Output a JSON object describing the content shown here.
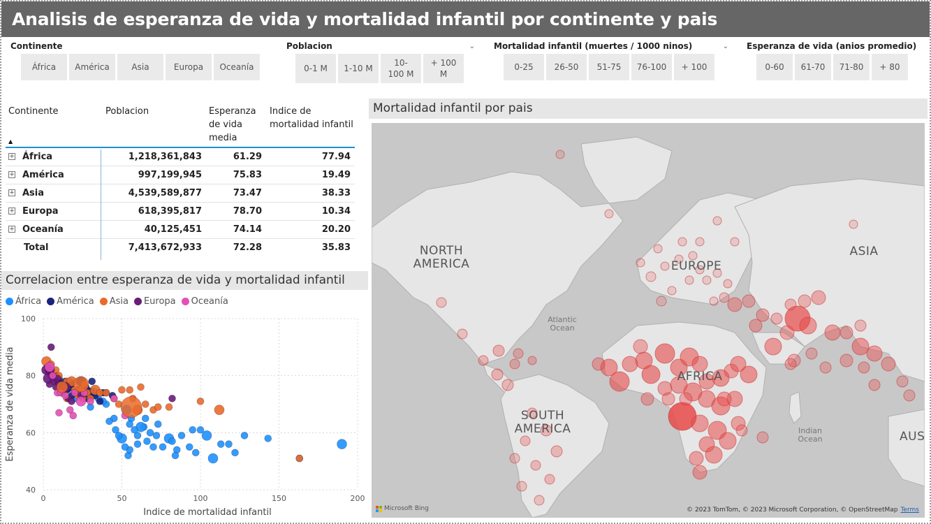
{
  "title": "Analisis de esperanza de vida y mortalidad infantil por continente y pais",
  "slicers": {
    "continente": {
      "label": "Continente",
      "options": [
        "África",
        "América",
        "Asia",
        "Europa",
        "Oceanía"
      ]
    },
    "poblacion": {
      "label": "Poblacion",
      "options": [
        "0-1 M",
        "1-10 M",
        "10-100 M",
        "+ 100 M"
      ]
    },
    "mortalidad": {
      "label": "Mortalidad infantil (muertes / 1000 ninos)",
      "options": [
        "0-25",
        "26-50",
        "51-75",
        "76-100",
        "+ 100"
      ]
    },
    "esperanza": {
      "label": "Esperanza de vida (anios promedio)",
      "options": [
        "0-60",
        "61-70",
        "71-80",
        "+ 80"
      ]
    }
  },
  "matrix": {
    "headers": [
      "Continente",
      "Poblacion",
      "Esperanza de vida media",
      "Indice de mortalidad infantil"
    ],
    "rows": [
      {
        "continente": "África",
        "poblacion": "1,218,361,843",
        "esperanza": "61.29",
        "mortalidad": "77.94"
      },
      {
        "continente": "América",
        "poblacion": "997,199,945",
        "esperanza": "75.83",
        "mortalidad": "19.49"
      },
      {
        "continente": "Asia",
        "poblacion": "4,539,589,877",
        "esperanza": "73.47",
        "mortalidad": "38.33"
      },
      {
        "continente": "Europa",
        "poblacion": "618,395,817",
        "esperanza": "78.70",
        "mortalidad": "10.34"
      },
      {
        "continente": "Oceanía",
        "poblacion": "40,125,451",
        "esperanza": "74.14",
        "mortalidad": "20.20"
      }
    ],
    "total": {
      "label": "Total",
      "poblacion": "7,413,672,933",
      "esperanza": "72.28",
      "mortalidad": "35.83"
    }
  },
  "scatter_title": "Correlacion entre esperanza de vida y mortalidad infantil",
  "map_title": "Mortalidad infantil por pais",
  "map": {
    "continent_labels": [
      "NORTH AMERICA",
      "EUROPE",
      "ASIA",
      "AFRICA",
      "SOUTH AMERICA",
      "AUS"
    ],
    "ocean_labels": [
      "Atlantic Ocean",
      "Indian Ocean"
    ],
    "attribution": "© 2023 TomTom, © 2023 Microsoft Corporation, © OpenStreetMap",
    "terms": "Terms",
    "bing": "Microsoft Bing"
  },
  "colors": {
    "África": "#1e90ff",
    "América": "#1a237e",
    "Asia": "#ea6a2b",
    "Europa": "#6a1b7a",
    "Oceanía": "#e44fb5",
    "title_bg": "#666666",
    "map_bubble": "#e84a4a"
  },
  "chart_data": {
    "type": "scatter",
    "title": "Correlacion entre esperanza de vida y mortalidad infantil",
    "xlabel": "Indice de mortalidad infantil",
    "ylabel": "Esperanza de vida media",
    "xlim": [
      0,
      200
    ],
    "ylim": [
      40,
      100
    ],
    "xticks": [
      0,
      50,
      100,
      150,
      200
    ],
    "yticks": [
      40,
      60,
      80,
      100
    ],
    "legend": "top-left",
    "series": [
      {
        "name": "África",
        "points": [
          [
            190,
            56
          ],
          [
            143,
            58
          ],
          [
            163,
            51
          ],
          [
            128,
            59
          ],
          [
            118,
            56
          ],
          [
            122,
            53
          ],
          [
            113,
            56
          ],
          [
            104,
            59
          ],
          [
            100,
            61
          ],
          [
            95,
            61
          ],
          [
            93,
            55
          ],
          [
            88,
            59
          ],
          [
            85,
            54
          ],
          [
            84,
            52
          ],
          [
            80,
            58
          ],
          [
            76,
            55
          ],
          [
            72,
            59
          ],
          [
            70,
            55
          ],
          [
            68,
            60
          ],
          [
            66,
            57
          ],
          [
            64,
            62
          ],
          [
            62,
            62
          ],
          [
            60,
            59
          ],
          [
            58,
            61
          ],
          [
            56,
            65
          ],
          [
            54,
            52
          ],
          [
            55,
            54
          ],
          [
            52,
            55
          ],
          [
            50,
            58
          ],
          [
            48,
            59
          ],
          [
            45,
            65
          ],
          [
            42,
            64
          ],
          [
            40,
            70
          ],
          [
            38,
            71
          ],
          [
            35,
            72
          ],
          [
            32,
            74
          ],
          [
            30,
            73
          ],
          [
            28,
            75
          ],
          [
            25,
            76
          ],
          [
            22,
            75
          ],
          [
            20,
            72
          ],
          [
            17,
            78
          ],
          [
            108,
            51
          ],
          [
            97,
            53
          ],
          [
            73,
            63
          ],
          [
            60,
            56
          ],
          [
            82,
            57
          ],
          [
            46,
            61
          ],
          [
            30,
            69
          ],
          [
            53,
            68
          ],
          [
            65,
            65
          ],
          [
            55,
            63
          ]
        ]
      },
      {
        "name": "América",
        "points": [
          [
            4,
            82
          ],
          [
            6,
            80
          ],
          [
            8,
            80
          ],
          [
            10,
            79
          ],
          [
            12,
            77
          ],
          [
            14,
            78
          ],
          [
            15,
            75
          ],
          [
            16,
            76
          ],
          [
            18,
            77
          ],
          [
            20,
            74
          ],
          [
            22,
            75
          ],
          [
            25,
            73
          ],
          [
            27,
            76
          ],
          [
            28,
            72
          ],
          [
            30,
            74
          ],
          [
            33,
            73
          ],
          [
            36,
            71
          ],
          [
            40,
            74
          ],
          [
            9,
            78
          ],
          [
            12,
            74
          ],
          [
            18,
            73
          ],
          [
            24,
            78
          ],
          [
            31,
            78
          ],
          [
            38,
            74
          ],
          [
            44,
            73
          ]
        ]
      },
      {
        "name": "Asia",
        "points": [
          [
            2,
            85
          ],
          [
            3,
            83
          ],
          [
            5,
            84
          ],
          [
            8,
            82
          ],
          [
            10,
            80
          ],
          [
            12,
            76
          ],
          [
            15,
            78
          ],
          [
            18,
            78
          ],
          [
            20,
            75
          ],
          [
            22,
            73
          ],
          [
            24,
            75
          ],
          [
            26,
            77
          ],
          [
            28,
            74
          ],
          [
            30,
            72
          ],
          [
            33,
            75
          ],
          [
            36,
            74
          ],
          [
            40,
            74
          ],
          [
            45,
            72
          ],
          [
            50,
            75
          ],
          [
            55,
            75
          ],
          [
            57,
            72
          ],
          [
            60,
            68
          ],
          [
            62,
            76
          ],
          [
            65,
            70
          ],
          [
            70,
            68
          ],
          [
            73,
            69
          ],
          [
            80,
            69
          ],
          [
            100,
            71
          ],
          [
            112,
            68
          ],
          [
            163,
            51
          ],
          [
            25,
            72
          ],
          [
            15,
            72
          ],
          [
            48,
            70
          ]
        ]
      },
      {
        "name": "Europa",
        "points": [
          [
            2,
            82
          ],
          [
            3,
            83
          ],
          [
            4,
            81
          ],
          [
            5,
            80
          ],
          [
            5,
            82
          ],
          [
            6,
            79
          ],
          [
            4,
            77
          ],
          [
            3,
            79
          ],
          [
            7,
            78
          ],
          [
            8,
            76
          ],
          [
            9,
            79
          ],
          [
            10,
            77
          ],
          [
            11,
            75
          ],
          [
            12,
            74
          ],
          [
            14,
            76
          ],
          [
            16,
            72
          ],
          [
            18,
            71
          ],
          [
            5,
            90
          ],
          [
            24,
            73
          ],
          [
            82,
            72
          ]
        ]
      },
      {
        "name": "Oceanía",
        "points": [
          [
            4,
            83
          ],
          [
            6,
            80
          ],
          [
            9,
            74
          ],
          [
            11,
            74
          ],
          [
            14,
            73
          ],
          [
            17,
            68
          ],
          [
            20,
            74
          ],
          [
            24,
            71
          ],
          [
            26,
            74
          ],
          [
            30,
            71
          ],
          [
            45,
            72
          ],
          [
            52,
            66
          ],
          [
            19,
            66
          ],
          [
            10,
            67
          ]
        ]
      }
    ]
  }
}
